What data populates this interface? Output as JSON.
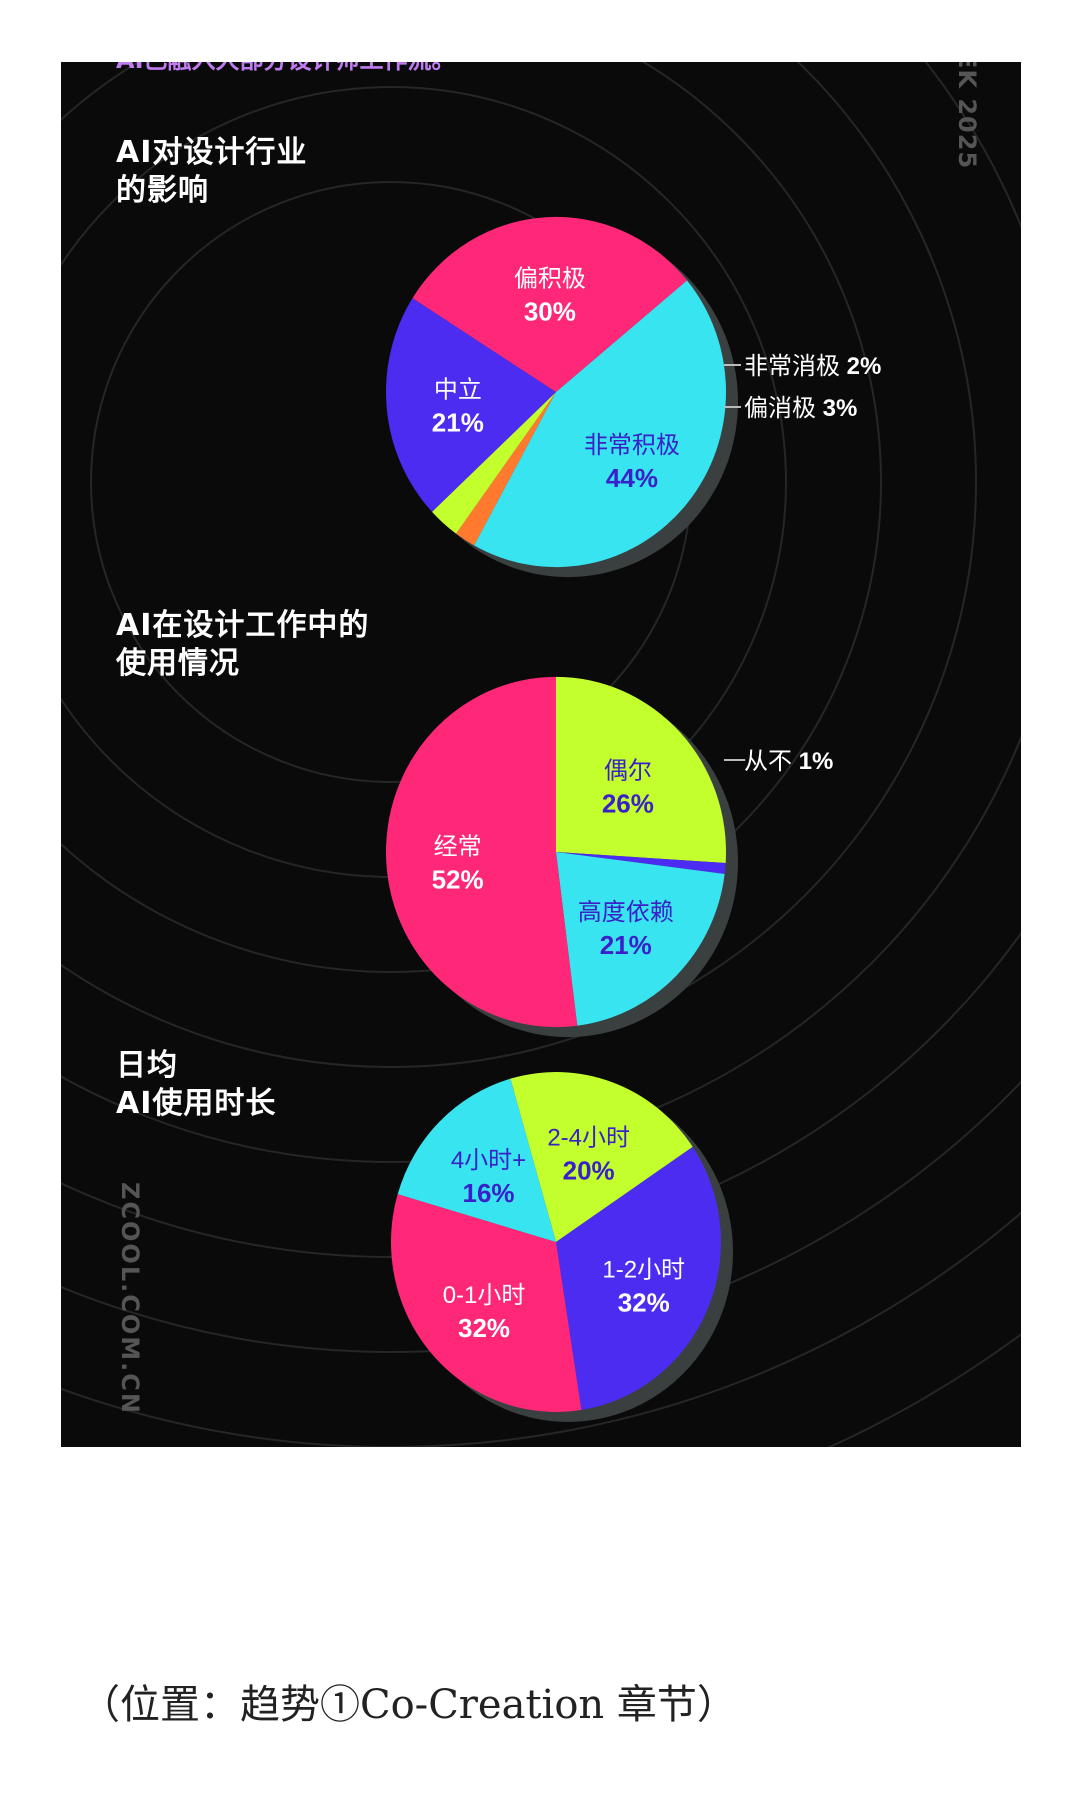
{
  "header_cut": "AI已融入大部分设计师工作流。",
  "side_right": "EK 2025",
  "side_left": "ZCOOL.COM.CN",
  "caption": "（位置：趋势①Co-Creation 章节）",
  "colors": {
    "cyan": "#38e4f0",
    "pink": "#fe2778",
    "purple": "#4b2cf0",
    "lime": "#c3ff2d",
    "orange": "#ff7a2e",
    "background": "#0a0a0a",
    "label_dark": "#3a20c8",
    "label_light": "#ffffff"
  },
  "chart_data": [
    {
      "type": "pie",
      "title_lines": [
        "AI对设计行业",
        "的影响"
      ],
      "slices": [
        {
          "label": "非常积极",
          "value": 44,
          "color": "cyan",
          "text_color": "label_dark"
        },
        {
          "label": "非常消极",
          "value": 2,
          "color": "orange",
          "text_color": "label_light",
          "callout": true
        },
        {
          "label": "偏消极",
          "value": 3,
          "color": "lime",
          "text_color": "label_light",
          "callout": true
        },
        {
          "label": "中立",
          "value": 21,
          "color": "purple",
          "text_color": "label_light"
        },
        {
          "label": "偏积极",
          "value": 30,
          "color": "pink",
          "text_color": "label_light"
        }
      ]
    },
    {
      "type": "pie",
      "title_lines": [
        "AI在设计工作中的",
        "使用情况"
      ],
      "slices": [
        {
          "label": "偶尔",
          "value": 26,
          "color": "lime",
          "text_color": "label_dark"
        },
        {
          "label": "从不",
          "value": 1,
          "color": "purple",
          "text_color": "label_light",
          "callout": true
        },
        {
          "label": "高度依赖",
          "value": 21,
          "color": "cyan",
          "text_color": "label_dark"
        },
        {
          "label": "经常",
          "value": 52,
          "color": "pink",
          "text_color": "label_light"
        }
      ]
    },
    {
      "type": "pie",
      "title_lines": [
        "日均",
        "AI使用时长"
      ],
      "slices": [
        {
          "label": "2-4小时",
          "value": 20,
          "color": "lime",
          "text_color": "label_dark"
        },
        {
          "label": "1-2小时",
          "value": 32,
          "color": "purple",
          "text_color": "label_light"
        },
        {
          "label": "0-1小时",
          "value": 32,
          "color": "pink",
          "text_color": "label_light"
        },
        {
          "label": "4小时+",
          "value": 16,
          "color": "cyan",
          "text_color": "label_dark"
        }
      ]
    }
  ]
}
